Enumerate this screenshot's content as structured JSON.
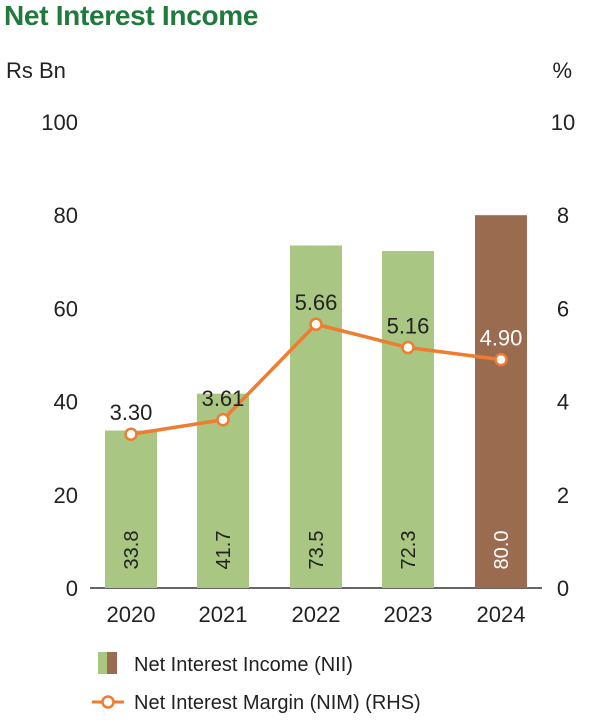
{
  "chart_data": {
    "type": "bar",
    "title": "Net Interest Income",
    "y_left_unit": "Rs Bn",
    "y_right_unit": "%",
    "ylim_left": [
      0,
      100
    ],
    "ylim_right": [
      0,
      10
    ],
    "yticks_left": [
      "0",
      "20",
      "40",
      "60",
      "80",
      "100"
    ],
    "yticks_right": [
      "0",
      "2",
      "4",
      "6",
      "8",
      "10"
    ],
    "categories": [
      "2020",
      "2021",
      "2022",
      "2023",
      "2024"
    ],
    "series": [
      {
        "name": "Net Interest Income (NII)",
        "type": "bar",
        "axis": "left",
        "values": [
          33.8,
          41.7,
          73.5,
          72.3,
          80.0
        ],
        "labels": [
          "33.8",
          "41.7",
          "73.5",
          "72.3",
          "80.0"
        ],
        "colors": [
          "#a9c682",
          "#a9c682",
          "#a9c682",
          "#a9c682",
          "#9b6b4f"
        ]
      },
      {
        "name": "Net Interest Margin (NIM) (RHS)",
        "type": "line",
        "axis": "right",
        "values": [
          3.3,
          3.61,
          5.66,
          5.16,
          4.9
        ],
        "labels": [
          "3.30",
          "3.61",
          "5.66",
          "5.16",
          "4.90"
        ],
        "color": "#ee7d31"
      }
    ],
    "grid": false,
    "legend": "bottom"
  }
}
